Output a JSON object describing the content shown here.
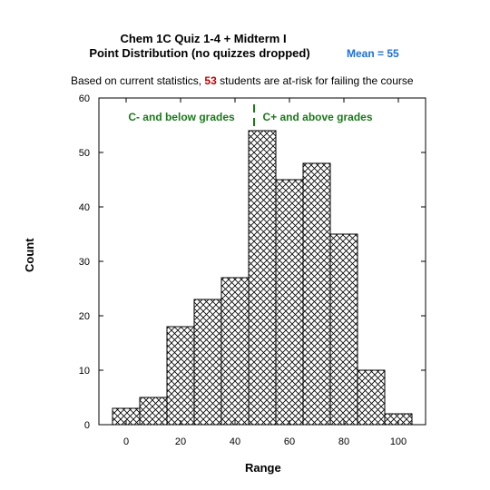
{
  "title_line1": "Chem 1C Quiz 1-4 + Midterm I",
  "title_line2": "Point Distribution  (no quizzes dropped)",
  "mean_label": "Mean = 55",
  "subtitle_prefix": "Based on current statistics,",
  "at_risk_count": "53",
  "subtitle_suffix": "students are at-risk for failing the course",
  "annotation_left": "C- and below grades",
  "annotation_right": "C+ and above grades",
  "colors": {
    "accent_blue": "#1f6fd6",
    "highlight_red": "#c00000",
    "annotation_green": "#1a7a1a"
  },
  "chart_data": {
    "type": "bar",
    "title": "Chem 1C Quiz 1-4 + Midterm I Point Distribution  (no quizzes dropped)",
    "xlabel": "Range",
    "ylabel": "Count",
    "xlim": [
      -10,
      110
    ],
    "ylim": [
      0,
      60
    ],
    "xticks": [
      0,
      20,
      40,
      60,
      80,
      100
    ],
    "yticks": [
      0,
      10,
      20,
      30,
      40,
      50,
      60
    ],
    "bin_width": 10,
    "bins": [
      {
        "x": 0,
        "value": 3
      },
      {
        "x": 10,
        "value": 5
      },
      {
        "x": 20,
        "value": 18
      },
      {
        "x": 30,
        "value": 23
      },
      {
        "x": 40,
        "value": 27
      },
      {
        "x": 50,
        "value": 54
      },
      {
        "x": 60,
        "value": 45
      },
      {
        "x": 70,
        "value": 48
      },
      {
        "x": 80,
        "value": 35
      },
      {
        "x": 90,
        "value": 10
      },
      {
        "x": 100,
        "value": 2
      }
    ],
    "threshold_x": 47,
    "grid": false,
    "fill_pattern": "crosshatch"
  }
}
